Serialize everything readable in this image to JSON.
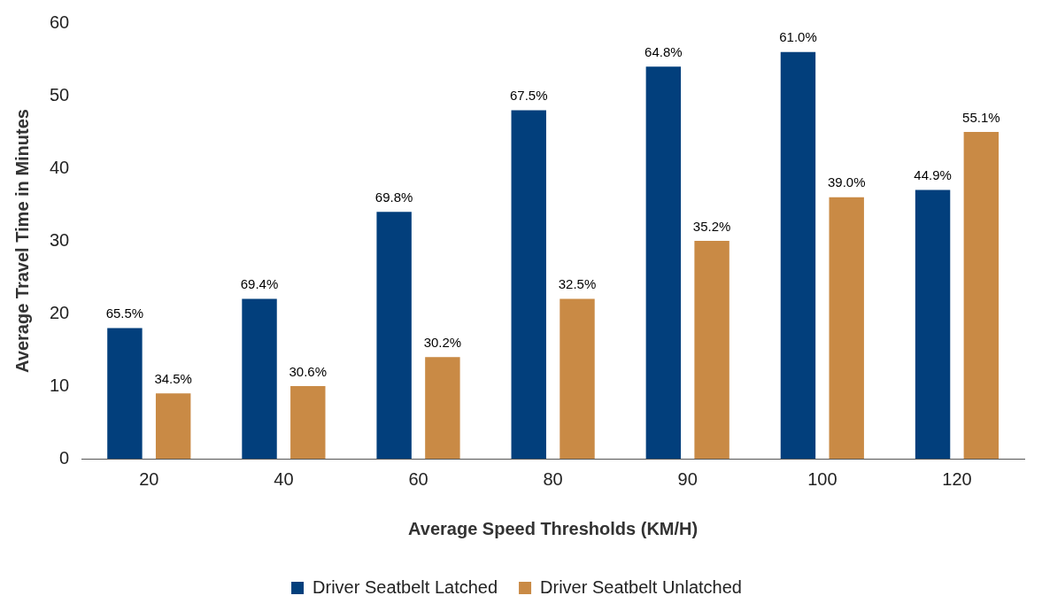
{
  "chart_data": {
    "type": "bar",
    "xlabel": "Average Speed Thresholds (KM/H)",
    "ylabel": "Average Travel Time in Minutes",
    "categories": [
      "20",
      "40",
      "60",
      "80",
      "90",
      "100",
      "120"
    ],
    "series": [
      {
        "name": "Driver Seatbelt Latched",
        "color": "#023f7c",
        "values": [
          18,
          22,
          34,
          48,
          54,
          56,
          37
        ]
      },
      {
        "name": "Driver Seatbelt Unlatched",
        "color": "#c98a45",
        "values": [
          9,
          10,
          14,
          22,
          30,
          36,
          45
        ]
      }
    ],
    "annotations": [
      "65.5%",
      "34.5%",
      "69.4%",
      "30.6%",
      "69.8%",
      "30.2%",
      "67.5%",
      "32.5%",
      "64.8%",
      "35.2%",
      "61.0%",
      "39.0%",
      "44.9%",
      "55.1%"
    ],
    "ylim": [
      0,
      60
    ],
    "yticks": [
      0,
      10,
      20,
      30,
      40,
      50,
      60
    ],
    "grid": false,
    "legend": "bottom"
  }
}
